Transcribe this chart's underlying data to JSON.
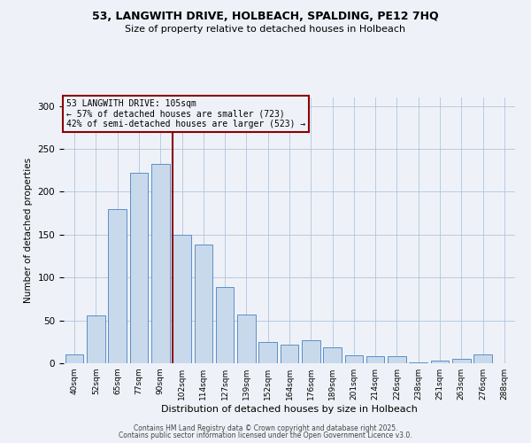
{
  "title_line1": "53, LANGWITH DRIVE, HOLBEACH, SPALDING, PE12 7HQ",
  "title_line2": "Size of property relative to detached houses in Holbeach",
  "xlabel": "Distribution of detached houses by size in Holbeach",
  "ylabel": "Number of detached properties",
  "bar_labels": [
    "40sqm",
    "52sqm",
    "65sqm",
    "77sqm",
    "90sqm",
    "102sqm",
    "114sqm",
    "127sqm",
    "139sqm",
    "152sqm",
    "164sqm",
    "176sqm",
    "189sqm",
    "201sqm",
    "214sqm",
    "226sqm",
    "238sqm",
    "251sqm",
    "263sqm",
    "276sqm",
    "288sqm"
  ],
  "bar_values": [
    10,
    56,
    180,
    222,
    232,
    150,
    138,
    89,
    57,
    25,
    22,
    27,
    19,
    9,
    8,
    8,
    1,
    3,
    5,
    10,
    0
  ],
  "bar_color": "#c9d9ec",
  "bar_edge_color": "#5b8fc9",
  "marker_index": 5,
  "marker_label_line1": "53 LANGWITH DRIVE: 105sqm",
  "marker_label_line2": "← 57% of detached houses are smaller (723)",
  "marker_label_line3": "42% of semi-detached houses are larger (523) →",
  "marker_color": "#8b0000",
  "ylim": [
    0,
    310
  ],
  "yticks": [
    0,
    50,
    100,
    150,
    200,
    250,
    300
  ],
  "grid_color": "#b0c4de",
  "bg_color": "#eef2f8",
  "footer_line1": "Contains HM Land Registry data © Crown copyright and database right 2025.",
  "footer_line2": "Contains public sector information licensed under the Open Government Licence v3.0."
}
